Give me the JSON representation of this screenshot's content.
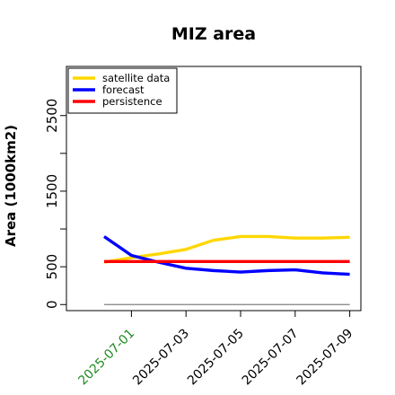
{
  "chart_data": {
    "type": "line",
    "title": "MIZ area",
    "xlabel": "",
    "ylabel": "Area (1000km2)",
    "x_tick_labels": [
      "2025-07-01",
      "2025-07-03",
      "2025-07-05",
      "2025-07-07",
      "2025-07-09"
    ],
    "x_tick_colors": [
      "#228B22",
      "#000000",
      "#000000",
      "#000000",
      "#000000"
    ],
    "y_ticks": [
      0,
      500,
      1500,
      2500
    ],
    "y_tick_labels": [
      "0",
      "500",
      "1500",
      "2500"
    ],
    "y_minor_ticks": [
      1000,
      2000
    ],
    "ylim": [
      -80,
      3150
    ],
    "dates": [
      "2025-06-30",
      "2025-07-01",
      "2025-07-02",
      "2025-07-03",
      "2025-07-04",
      "2025-07-05",
      "2025-07-06",
      "2025-07-07",
      "2025-07-08",
      "2025-07-09"
    ],
    "series": [
      {
        "name": "satellite data",
        "color": "#FFD700",
        "values": [
          560,
          620,
          670,
          730,
          850,
          900,
          900,
          880,
          880,
          890
        ]
      },
      {
        "name": "forecast",
        "color": "#0000FF",
        "values": [
          900,
          650,
          560,
          480,
          450,
          430,
          450,
          460,
          420,
          400
        ]
      },
      {
        "name": "persistence",
        "color": "#FF0000",
        "values": [
          570,
          570,
          570,
          570,
          570,
          570,
          570,
          570,
          570,
          570
        ]
      }
    ],
    "reference_line": {
      "value": 0,
      "color": "#808080"
    },
    "legend_position": "top-left",
    "grid": false
  }
}
